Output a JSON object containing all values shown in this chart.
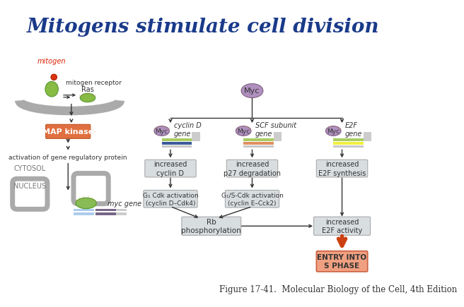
{
  "title": "Mitogens stimulate cell division",
  "title_color": "#1a3a8a",
  "title_fontsize": 20,
  "caption": "Figure 17-41.  Molecular Biology of the Cell, 4th Edition",
  "caption_fontsize": 8.5,
  "bg_color": "#ffffff",
  "left_panel": {
    "mitogen_label": "mitogen",
    "mitogen_label_color": "#dd2200",
    "mitogen_receptor_label": "mitogen receptor",
    "ras_label": "Ras",
    "mapkinase_label": "MAP kinase",
    "mapkinase_color": "#e07040",
    "activation_label": "activation of gene regulatory protein",
    "cytosol_label": "CYTOSOL",
    "nucleus_label": "NUCLEUS",
    "myc_gene_label": "myc gene"
  },
  "right_panel": {
    "myc_top_label": "Myc",
    "myc_circle_color": "#b090c0",
    "gene_labels": [
      "cyclin D\ngene",
      "SCF subunit\ngene",
      "E2F\ngene"
    ],
    "stripe_colors": [
      [
        "#a8cc60",
        "#3a5a9a",
        "#c8c8c8"
      ],
      [
        "#a8cc60",
        "#e09060",
        "#c8c8c8"
      ],
      [
        "#a8cc60",
        "#f0f040",
        "#c8c8c8"
      ]
    ],
    "result_labels": [
      "increased\ncyclin D",
      "increased\np27 degradation",
      "increased\nE2F synthesis"
    ],
    "cdk_labels": [
      "G₁ Cdk activation\n(cyclin D–Cdk4)",
      "G₁/S-Cdk activation\n(cyclin E–Cck2)"
    ],
    "rb_label": "Rb\nphosphorylation",
    "e2f_activity_label": "increased\nE2F activity",
    "entry_label": "ENTRY INTO\nS PHASE",
    "entry_fill": "#f0a080",
    "entry_ec": "#cc6040",
    "entry_arrow_color": "#cc4010",
    "box_fill": "#d8dde0",
    "box_ec": "#aaaaaa"
  },
  "arrow_color": "#333333",
  "cell_membrane_color": "#aaaaaa",
  "green_protein": "#88bb44",
  "orange_protein": "#e07040",
  "myc_color": "#b090c0",
  "myc_ec": "#806080"
}
